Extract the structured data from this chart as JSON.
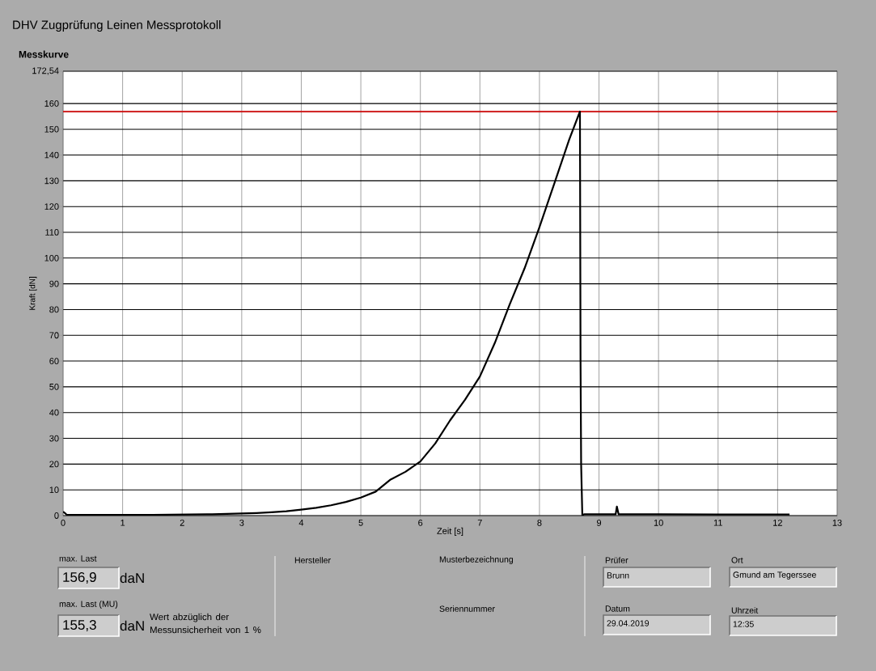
{
  "chart_data": {
    "type": "line",
    "title": "DHV Zugprüfung Leinen Messprotokoll",
    "subtitle": "Messkurve",
    "xlabel": "Zeit [s]",
    "ylabel": "Kraft [dN]",
    "series": [
      {
        "color": "#000000",
        "x": [
          0,
          0.03,
          0.06,
          0.5,
          1,
          1.5,
          2,
          2.5,
          3,
          3.25,
          3.5,
          3.75,
          4,
          4.25,
          4.5,
          4.75,
          5,
          5.25,
          5.5,
          5.75,
          6,
          6.25,
          6.5,
          6.75,
          7,
          7.25,
          7.5,
          7.75,
          8,
          8.25,
          8.5,
          8.68,
          8.69,
          8.7,
          8.72,
          8.75,
          9,
          9.28,
          9.3,
          9.33,
          10,
          11,
          12,
          12.2
        ],
        "values": [
          1.5,
          1,
          0.3,
          0.3,
          0.3,
          0.3,
          0.4,
          0.5,
          0.8,
          1,
          1.3,
          1.7,
          2.3,
          3,
          4,
          5.3,
          7,
          9.3,
          14,
          17,
          21,
          28,
          37,
          45,
          54,
          67,
          82,
          96,
          112,
          129,
          146,
          156.9,
          60,
          20,
          0,
          0.5,
          0.5,
          0.5,
          3.5,
          0.5,
          0.5,
          0.4,
          0.4,
          0.4
        ]
      }
    ],
    "xlim": [
      0,
      13
    ],
    "ylim": [
      0,
      172.54
    ],
    "xticks": [
      0,
      1,
      2,
      3,
      4,
      5,
      6,
      7,
      8,
      9,
      10,
      11,
      12,
      13
    ],
    "yticks": [
      0,
      10,
      20,
      30,
      40,
      50,
      60,
      70,
      80,
      90,
      100,
      110,
      120,
      130,
      140,
      150,
      160,
      {
        "value": 172.54,
        "label": "172,54"
      }
    ],
    "grid": true,
    "ref_lines": [
      {
        "axis": "y",
        "value": 156.9,
        "color": "#cc1111"
      }
    ],
    "annotations": [
      "max. Last",
      "156,9",
      "daN",
      "max. Last (MU)",
      "155,3",
      "daN",
      "Wert abzüglich der Messunsicherheit von 1 %",
      "Hersteller",
      "Musterbezeichnung",
      "Seriennummer",
      "Prüfer",
      "Brunn",
      "Datum",
      "29.04.2019",
      "Ort",
      "Gmund am Tegerssee",
      "Uhrzeit",
      "12:35"
    ]
  }
}
